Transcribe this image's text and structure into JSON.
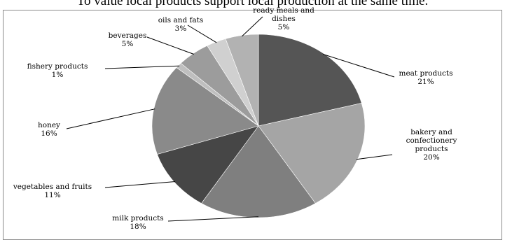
{
  "caption": "To value local products support local production at the same time.",
  "chart_data": {
    "type": "pie",
    "title": "",
    "start_angle_deg": 0,
    "direction": "clockwise",
    "slices": [
      {
        "label": [
          "meat products"
        ],
        "pct_text": "21%",
        "value": 21,
        "color": "#555555"
      },
      {
        "label": [
          "bakery and",
          "confectionery",
          "products"
        ],
        "pct_text": "20%",
        "value": 20,
        "color": "#a5a5a5"
      },
      {
        "label": [
          "milk products"
        ],
        "pct_text": "18%",
        "value": 18,
        "color": "#7f7f7f"
      },
      {
        "label": [
          "vegetables and fruits"
        ],
        "pct_text": "11%",
        "value": 11,
        "color": "#464646"
      },
      {
        "label": [
          "honey"
        ],
        "pct_text": "16%",
        "value": 16,
        "color": "#8a8a8a"
      },
      {
        "label": [
          "fishery products"
        ],
        "pct_text": "1%",
        "value": 1,
        "color": "#bfbfbf"
      },
      {
        "label": [
          "beverages"
        ],
        "pct_text": "5%",
        "value": 5,
        "color": "#9c9c9c"
      },
      {
        "label": [
          "oils and fats"
        ],
        "pct_text": "3%",
        "value": 3,
        "color": "#d0d0d0"
      },
      {
        "label": [
          "ready meals and",
          "dishes"
        ],
        "pct_text": "5%",
        "value": 5,
        "color": "#b2b2b2"
      }
    ]
  }
}
